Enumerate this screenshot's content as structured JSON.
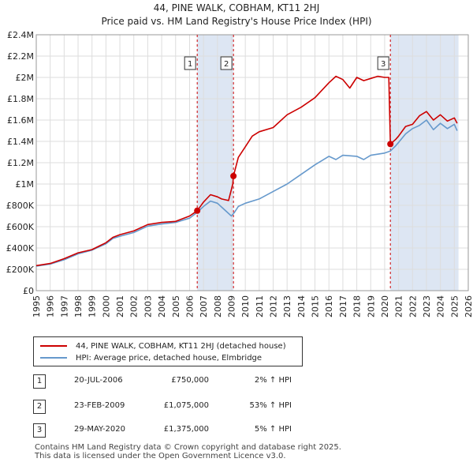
{
  "title": {
    "line1": "44, PINE WALK, COBHAM, KT11 2HJ",
    "line2": "Price paid vs. HM Land Registry's House Price Index (HPI)"
  },
  "colors": {
    "property": "#cc0000",
    "hpi": "#6699cc",
    "shade": "#dde6f3",
    "grid": "#dddddd",
    "marker_line": "#cc0000"
  },
  "legend": {
    "property_label": "44, PINE WALK, COBHAM, KT11 2HJ (detached house)",
    "hpi_label": "HPI: Average price, detached house, Elmbridge"
  },
  "transactions": [
    {
      "num": "1",
      "date": "20-JUL-2006",
      "price": "£750,000",
      "hpi": "2% ↑ HPI"
    },
    {
      "num": "2",
      "date": "23-FEB-2009",
      "price": "£1,075,000",
      "hpi": "53% ↑ HPI"
    },
    {
      "num": "3",
      "date": "29-MAY-2020",
      "price": "£1,375,000",
      "hpi": "5% ↑ HPI"
    }
  ],
  "footer": {
    "line1": "Contains HM Land Registry data © Crown copyright and database right 2025.",
    "line2": "This data is licensed under the Open Government Licence v3.0."
  },
  "chart_data": {
    "type": "line",
    "title": "Price paid vs. HM Land Registry's House Price Index (HPI)",
    "xlabel": "",
    "ylabel": "",
    "xlim": [
      1995,
      2026
    ],
    "ylim": [
      0,
      2400000
    ],
    "x_ticks": [
      "1995",
      "1996",
      "1997",
      "1998",
      "1999",
      "2000",
      "2001",
      "2002",
      "2003",
      "2004",
      "2005",
      "2006",
      "2007",
      "2008",
      "2009",
      "2010",
      "2011",
      "2012",
      "2013",
      "2014",
      "2015",
      "2016",
      "2017",
      "2018",
      "2019",
      "2020",
      "2021",
      "2022",
      "2023",
      "2024",
      "2025",
      "2026"
    ],
    "y_ticks": [
      {
        "value": 0,
        "label": "£0"
      },
      {
        "value": 200000,
        "label": "£200K"
      },
      {
        "value": 400000,
        "label": "£400K"
      },
      {
        "value": 600000,
        "label": "£600K"
      },
      {
        "value": 800000,
        "label": "£800K"
      },
      {
        "value": 1000000,
        "label": "£1M"
      },
      {
        "value": 1200000,
        "label": "£1.2M"
      },
      {
        "value": 1400000,
        "label": "£1.4M"
      },
      {
        "value": 1600000,
        "label": "£1.6M"
      },
      {
        "value": 1800000,
        "label": "£1.8M"
      },
      {
        "value": 2000000,
        "label": "£2M"
      },
      {
        "value": 2200000,
        "label": "£2.2M"
      },
      {
        "value": 2400000,
        "label": "£2.4M"
      }
    ],
    "grid": true,
    "shaded_periods": [
      [
        2006.55,
        2009.15
      ],
      [
        2020.41,
        2025.3
      ]
    ],
    "sales": [
      {
        "label": "1",
        "x": 2006.55,
        "y": 750000
      },
      {
        "label": "2",
        "x": 2009.15,
        "y": 1075000
      },
      {
        "label": "3",
        "x": 2020.41,
        "y": 1375000
      }
    ],
    "series": [
      {
        "name": "44, PINE WALK, COBHAM, KT11 2HJ (detached house)",
        "color": "#cc0000",
        "x": [
          1995,
          1996,
          1997,
          1998,
          1999,
          2000,
          2000.5,
          2001,
          2002,
          2003,
          2004,
          2005,
          2006,
          2006.55,
          2007,
          2007.5,
          2008,
          2008.3,
          2008.8,
          2009.1,
          2009.15,
          2009.5,
          2010,
          2010.5,
          2011,
          2012,
          2013,
          2014,
          2015,
          2016,
          2016.5,
          2017,
          2017.5,
          2018,
          2018.5,
          2019,
          2019.5,
          2020,
          2020.3,
          2020.41,
          2020.8,
          2021,
          2021.5,
          2022,
          2022.5,
          2023,
          2023.5,
          2024,
          2024.5,
          2025,
          2025.2
        ],
        "y": [
          235000,
          255000,
          300000,
          355000,
          385000,
          450000,
          500000,
          525000,
          560000,
          620000,
          640000,
          650000,
          700000,
          750000,
          830000,
          900000,
          880000,
          860000,
          845000,
          1000000,
          1075000,
          1250000,
          1350000,
          1450000,
          1490000,
          1530000,
          1650000,
          1720000,
          1810000,
          1950000,
          2010000,
          1980000,
          1900000,
          2000000,
          1970000,
          1990000,
          2010000,
          2000000,
          2000000,
          1375000,
          1420000,
          1450000,
          1540000,
          1560000,
          1640000,
          1680000,
          1600000,
          1650000,
          1590000,
          1620000,
          1570000
        ]
      },
      {
        "name": "HPI: Average price, detached house, Elmbridge",
        "color": "#6699cc",
        "x": [
          1995,
          1996,
          1997,
          1998,
          1999,
          2000,
          2000.5,
          2001,
          2002,
          2003,
          2004,
          2005,
          2006,
          2006.55,
          2007,
          2007.5,
          2008,
          2008.5,
          2009,
          2009.2,
          2009.5,
          2010,
          2011,
          2012,
          2013,
          2014,
          2015,
          2016,
          2016.5,
          2017,
          2018,
          2018.5,
          2019,
          2019.5,
          2020,
          2020.41,
          2020.8,
          2021,
          2021.5,
          2022,
          2022.5,
          2023,
          2023.5,
          2024,
          2024.5,
          2025,
          2025.2
        ],
        "y": [
          230000,
          250000,
          290000,
          345000,
          380000,
          440000,
          490000,
          510000,
          545000,
          605000,
          625000,
          640000,
          680000,
          735000,
          790000,
          840000,
          820000,
          760000,
          700000,
          730000,
          790000,
          820000,
          860000,
          930000,
          1000000,
          1090000,
          1180000,
          1260000,
          1230000,
          1270000,
          1260000,
          1230000,
          1270000,
          1280000,
          1290000,
          1310000,
          1360000,
          1390000,
          1470000,
          1520000,
          1550000,
          1600000,
          1510000,
          1570000,
          1520000,
          1560000,
          1500000
        ]
      }
    ]
  }
}
